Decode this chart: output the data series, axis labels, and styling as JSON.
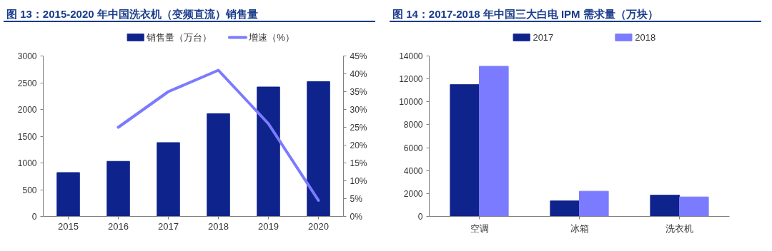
{
  "chart_data": [
    {
      "type": "bar",
      "title": "图 13：2015-2020 年中国洗衣机（变频直流）销售量",
      "categories": [
        "2015",
        "2016",
        "2017",
        "2018",
        "2019",
        "2020"
      ],
      "series": [
        {
          "name": "销售量（万台）",
          "color": "#0f238c",
          "values": [
            820,
            1030,
            1380,
            1920,
            2420,
            2520
          ]
        },
        {
          "name": "增速（%）",
          "type": "line",
          "axis": "y2",
          "color": "#7b7bff",
          "values": [
            null,
            25,
            35,
            41,
            26,
            4.5
          ]
        }
      ],
      "ylim": [
        0,
        3000
      ],
      "yticks": [
        0,
        500,
        1000,
        1500,
        2000,
        2500,
        3000
      ],
      "y2lim": [
        0,
        45
      ],
      "y2ticks": [
        {
          "value": 0,
          "label": "0%"
        },
        {
          "value": 5,
          "label": "5%"
        },
        {
          "value": 10,
          "label": "10%"
        },
        {
          "value": 15,
          "label": "15%"
        },
        {
          "value": 20,
          "label": "20%"
        },
        {
          "value": 25,
          "label": "25%"
        },
        {
          "value": 30,
          "label": "30%"
        },
        {
          "value": 35,
          "label": "35%"
        },
        {
          "value": 40,
          "label": "40%"
        },
        {
          "value": 45,
          "label": "45%"
        }
      ],
      "grid": false,
      "legend": "top",
      "marker": "none",
      "line_style": "solid"
    },
    {
      "type": "bar",
      "title": "图 14：2017-2018 年中国三大白电 IPM 需求量（万块）",
      "categories": [
        "空调",
        "冰箱",
        "洗衣机"
      ],
      "series": [
        {
          "name": "2017",
          "color": "#0f238c",
          "values": [
            11500,
            1350,
            1850
          ]
        },
        {
          "name": "2018",
          "color": "#7b7bff",
          "values": [
            13100,
            2200,
            1700
          ]
        }
      ],
      "ylim": [
        0,
        14000
      ],
      "yticks": [
        0,
        2000,
        4000,
        6000,
        8000,
        10000,
        12000,
        14000
      ],
      "grid": false,
      "legend": "top"
    }
  ]
}
